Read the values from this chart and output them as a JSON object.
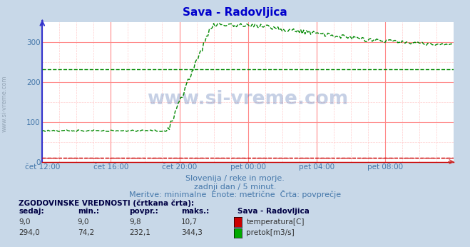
{
  "title": "Sava - Radovljica",
  "title_color": "#0000cc",
  "bg_color": "#c8d8e8",
  "plot_bg_color": "#ffffff",
  "grid_color_major": "#ff8888",
  "grid_color_minor": "#ffcccc",
  "text_color": "#4477aa",
  "xlim": [
    0,
    288
  ],
  "ylim": [
    0,
    350
  ],
  "yticks": [
    0,
    100,
    200,
    300
  ],
  "xtick_labels": [
    "čet 12:00",
    "čet 16:00",
    "čet 20:00",
    "pet 00:00",
    "pet 04:00",
    "pet 08:00"
  ],
  "xtick_positions": [
    0,
    48,
    96,
    144,
    192,
    240
  ],
  "subtitle1": "Slovenija / reke in morje.",
  "subtitle2": "zadnji dan / 5 minut.",
  "subtitle3": "Meritve: minimalne  Enote: metrične  Črta: povprečje",
  "hist_title": "ZGODOVINSKE VREDNOSTI (črtkana črta):",
  "col_headers": [
    "sedaj:",
    "min.:",
    "povpr.:",
    "maks.:",
    "Sava - Radovljica"
  ],
  "row1_values": [
    "9,0",
    "9,0",
    "9,8",
    "10,7"
  ],
  "row1_label": "temperatura[C]",
  "row1_color": "#cc0000",
  "row2_values": [
    "294,0",
    "74,2",
    "232,1",
    "344,3"
  ],
  "row2_label": "pretok[m3/s]",
  "row2_color": "#00aa00",
  "temp_avg": 9.8,
  "flow_avg": 232.1,
  "temp_color": "#cc0000",
  "flow_color": "#008800",
  "watermark_text": "www.si-vreme.com"
}
